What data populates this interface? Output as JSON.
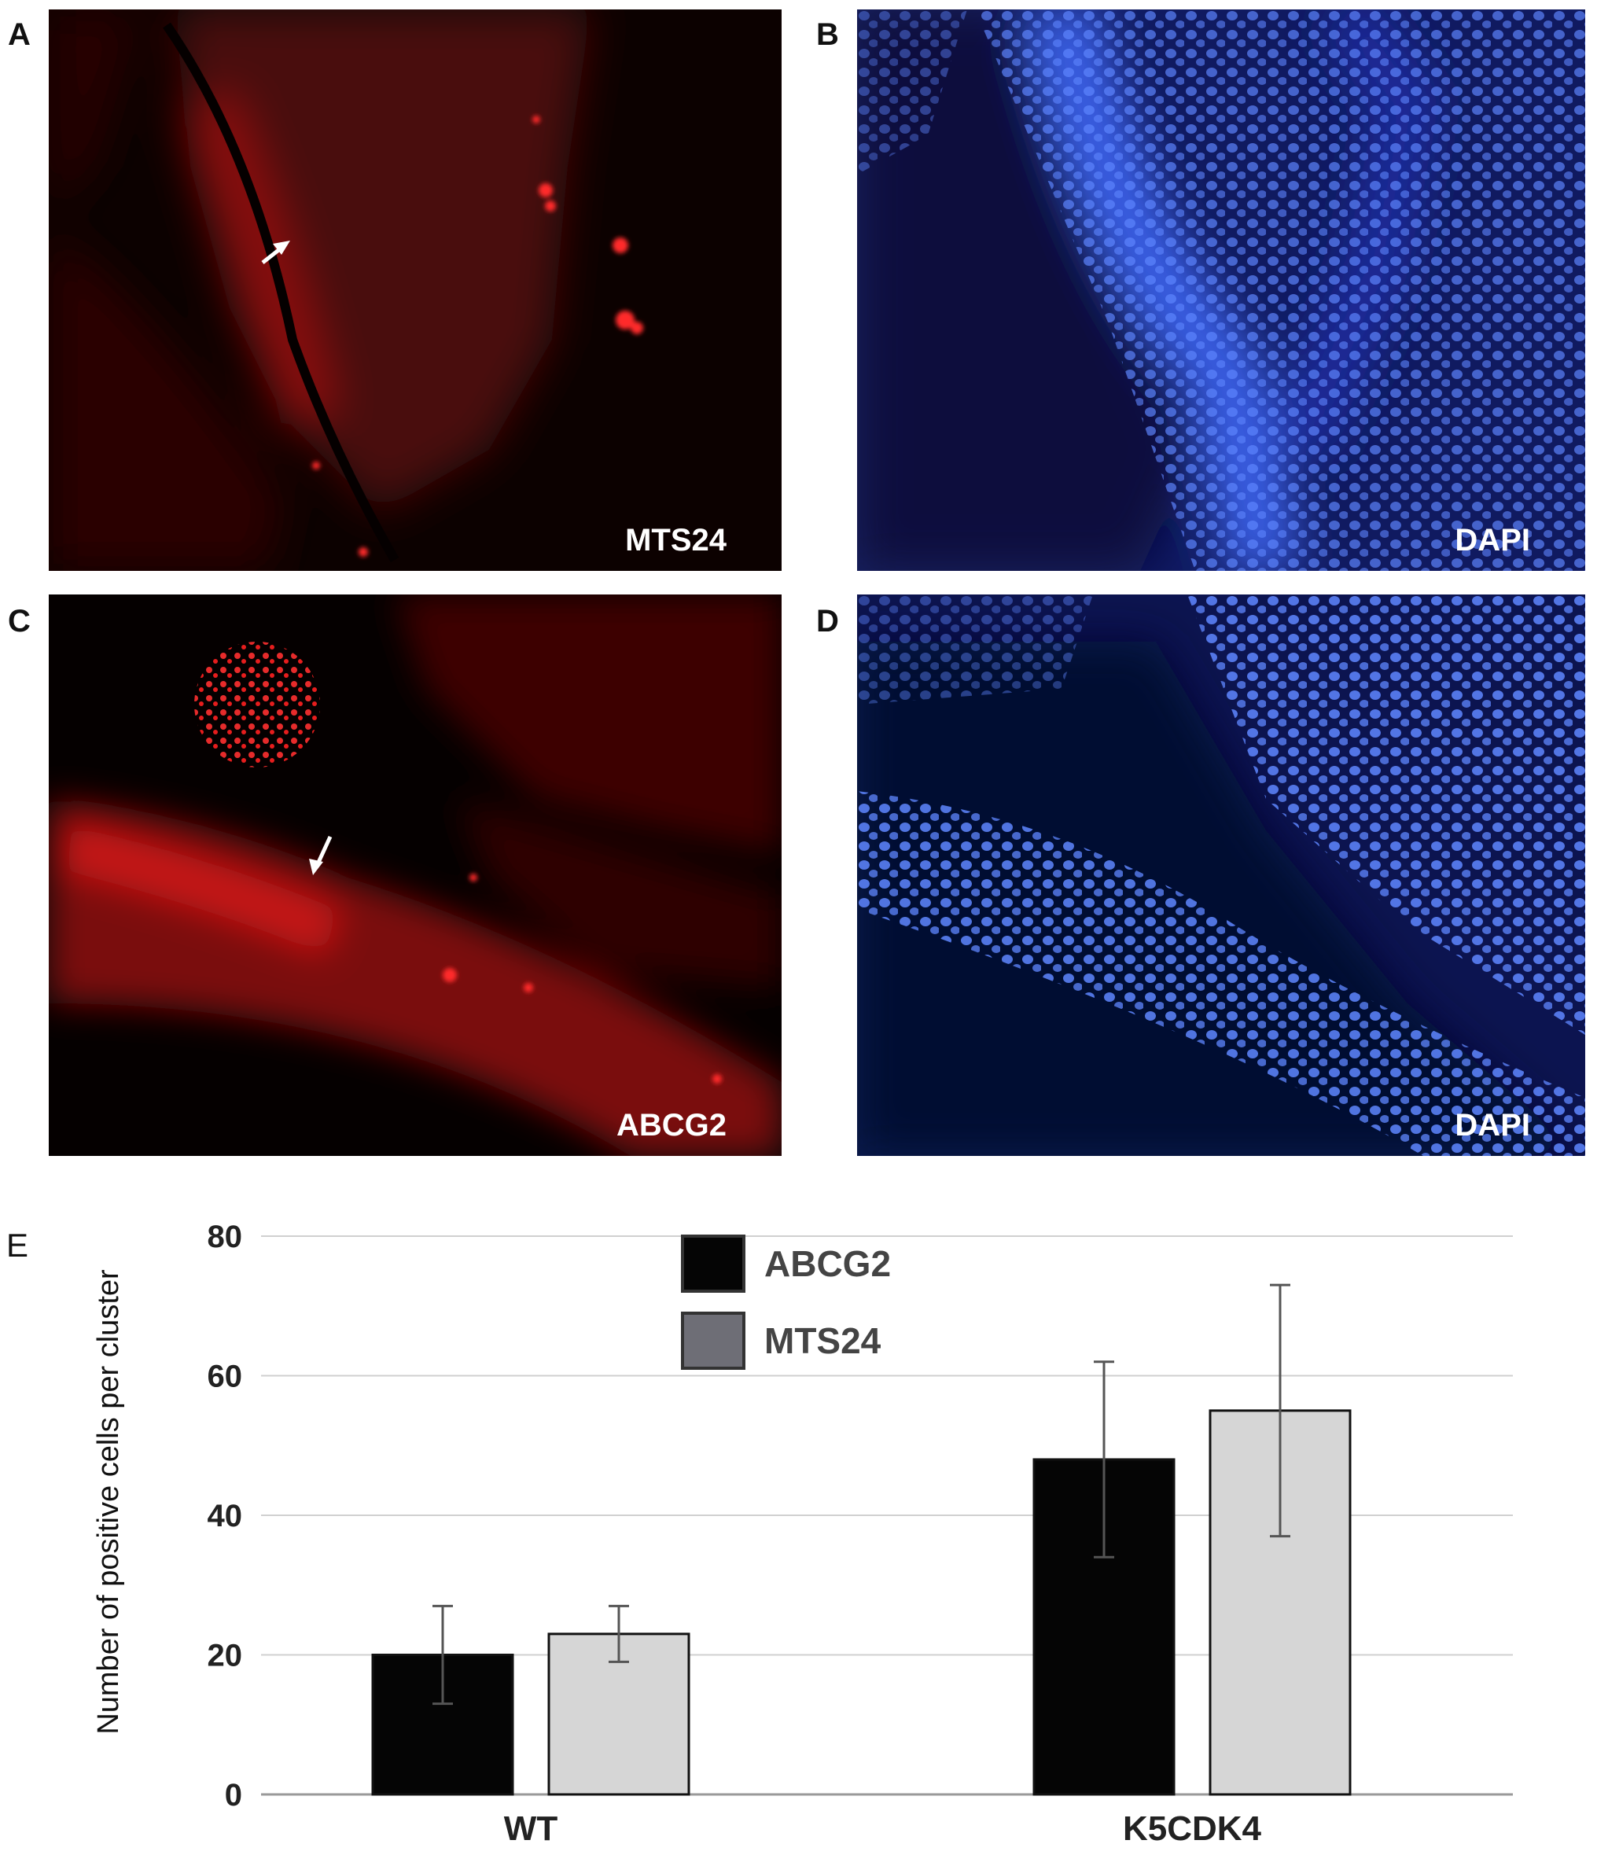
{
  "panels": [
    {
      "letter": "A",
      "stain": "MTS24",
      "channel": "red"
    },
    {
      "letter": "B",
      "stain": "DAPI",
      "channel": "blue"
    },
    {
      "letter": "C",
      "stain": "ABCG2",
      "channel": "red"
    },
    {
      "letter": "D",
      "stain": "DAPI",
      "channel": "blue"
    }
  ],
  "chart_letter": "E",
  "colors": {
    "red": "#e01818",
    "blue": "#3a5ce6",
    "abcg2": "#050505",
    "mts24": "#d6d6d6",
    "legend_mts24": "#6e6e76"
  },
  "chart_data": {
    "type": "bar",
    "categories": [
      "WT",
      "K5CDK4"
    ],
    "series": [
      {
        "name": "ABCG2",
        "values": [
          20,
          48
        ],
        "error_low": [
          13,
          34
        ],
        "error_high": [
          27,
          62
        ]
      },
      {
        "name": "MTS24",
        "values": [
          23,
          55
        ],
        "error_low": [
          19,
          37
        ],
        "error_high": [
          27,
          73
        ]
      }
    ],
    "ylabel": "Number of positive cells per cluster",
    "ylim": [
      0,
      80
    ],
    "yticks": [
      0,
      20,
      40,
      60,
      80
    ],
    "grid": true,
    "legend": "top-center"
  }
}
